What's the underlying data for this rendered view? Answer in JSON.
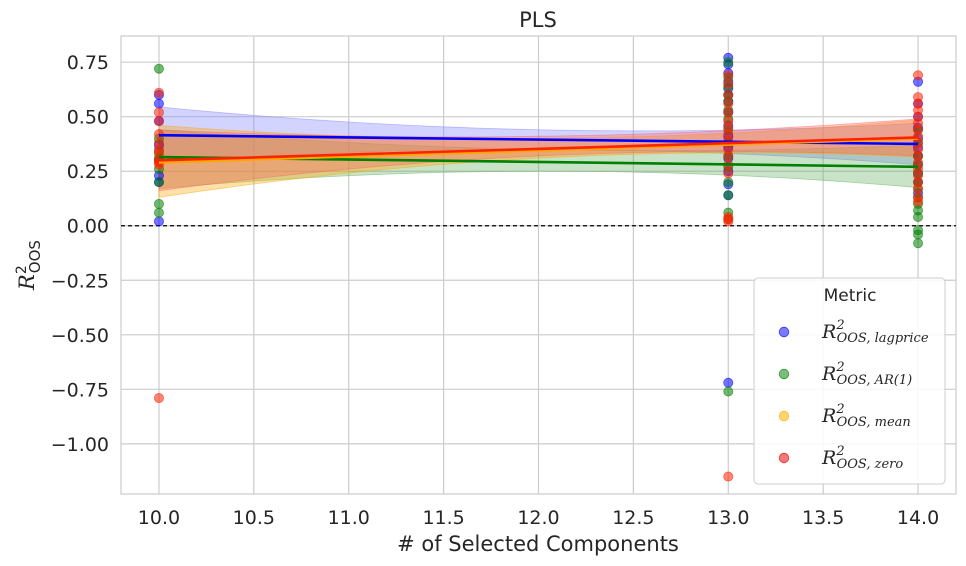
{
  "chart_data": {
    "type": "scatter",
    "title": "PLS",
    "xlabel": "# of Selected Components",
    "ylabel": "R²_OOS",
    "ylabel_main": "R",
    "ylabel_sup": "2",
    "ylabel_sub": "OOS",
    "xlim": [
      9.8,
      14.2
    ],
    "ylim": [
      -1.23,
      0.87
    ],
    "xticks": [
      "10.0",
      "10.5",
      "11.0",
      "11.5",
      "12.0",
      "12.5",
      "13.0",
      "13.5",
      "14.0"
    ],
    "xtick_values": [
      10.0,
      10.5,
      11.0,
      11.5,
      12.0,
      12.5,
      13.0,
      13.5,
      14.0
    ],
    "yticks": [
      "0.75",
      "0.50",
      "0.25",
      "0.00",
      "−0.25",
      "−0.50",
      "−0.75",
      "−1.00"
    ],
    "ytick_values": [
      0.75,
      0.5,
      0.25,
      0.0,
      -0.25,
      -0.5,
      -0.75,
      -1.0
    ],
    "reference_line_y": 0.0,
    "grid": true,
    "legend": {
      "title": "Metric",
      "placement": "bottom-right",
      "entries": [
        {
          "main": "R",
          "sup": "2",
          "sub": "OOS, lagprice",
          "color": "#3333ff"
        },
        {
          "main": "R",
          "sup": "2",
          "sub": "OOS, AR(1)",
          "color": "#339933"
        },
        {
          "main": "R",
          "sup": "2",
          "sub": "OOS, mean",
          "color": "#ffbb22"
        },
        {
          "main": "R",
          "sup": "2",
          "sub": "OOS, zero",
          "color": "#ee3333"
        }
      ]
    },
    "series": [
      {
        "name": "lagprice",
        "color": "#0000ff",
        "band_color": "#8080ff",
        "x": [
          10,
          10,
          10,
          10,
          10,
          10,
          10,
          10,
          13,
          13,
          13,
          13,
          13,
          13,
          13,
          13,
          13,
          13,
          13,
          13,
          13,
          13,
          13,
          13,
          14,
          14,
          14,
          14,
          14,
          14,
          14,
          14,
          14,
          14,
          14
        ],
        "y": [
          0.02,
          0.2,
          0.23,
          0.3,
          0.37,
          0.48,
          0.56,
          0.6,
          0.77,
          0.74,
          0.7,
          0.66,
          0.63,
          0.6,
          0.57,
          0.52,
          0.46,
          0.41,
          0.36,
          0.31,
          0.25,
          0.19,
          0.14,
          -0.72,
          0.66,
          0.56,
          0.5,
          0.45,
          0.4,
          0.36,
          0.32,
          0.28,
          0.24,
          0.2,
          0.15
        ],
        "fit": {
          "x0": 10,
          "y0": 0.415,
          "x1": 14,
          "y1": 0.375
        },
        "band": {
          "x": [
            10,
            12,
            14
          ],
          "upper": [
            0.545,
            0.44,
            0.47
          ],
          "lower": [
            0.29,
            0.35,
            0.28
          ]
        }
      },
      {
        "name": "AR(1)",
        "color": "#008000",
        "band_color": "#60b060",
        "x": [
          10,
          10,
          10,
          10,
          10,
          10,
          10,
          10,
          13,
          13,
          13,
          13,
          13,
          13,
          13,
          13,
          13,
          13,
          13,
          13,
          13,
          13,
          13,
          13,
          14,
          14,
          14,
          14,
          14,
          14,
          14,
          14,
          14,
          14,
          14,
          14,
          14,
          14
        ],
        "y": [
          0.72,
          0.06,
          0.1,
          0.2,
          0.26,
          0.31,
          0.34,
          0.4,
          0.75,
          0.06,
          0.03,
          0.14,
          0.2,
          0.27,
          0.32,
          0.38,
          0.44,
          0.49,
          0.53,
          0.57,
          0.6,
          0.64,
          0.68,
          -0.76,
          -0.08,
          -0.04,
          -0.02,
          0.04,
          0.07,
          0.1,
          0.13,
          0.17,
          0.2,
          0.24,
          0.28,
          0.32,
          0.38,
          0.44
        ],
        "fit": {
          "x0": 10,
          "y0": 0.315,
          "x1": 14,
          "y1": 0.27
        },
        "band": {
          "x": [
            10,
            12,
            14
          ],
          "upper": [
            0.44,
            0.35,
            0.37
          ],
          "lower": [
            0.17,
            0.25,
            0.175
          ]
        }
      },
      {
        "name": "mean",
        "color": "#ffa500",
        "band_color": "#ffa500",
        "x": [],
        "y": [],
        "fit": {
          "x0": 10,
          "y0": 0.29,
          "x1": 14,
          "y1": 0.4
        },
        "band": {
          "x": [
            10,
            12,
            14
          ],
          "upper": [
            0.46,
            0.4,
            0.485
          ],
          "lower": [
            0.13,
            0.31,
            0.315
          ]
        }
      },
      {
        "name": "zero",
        "color": "#ff2200",
        "band_color": "#ff6060",
        "x": [
          10,
          10,
          10,
          10,
          10,
          10,
          10,
          10,
          10,
          10,
          10,
          13,
          13,
          13,
          13,
          13,
          13,
          13,
          13,
          13,
          13,
          13,
          13,
          13,
          13,
          13,
          13,
          13,
          14,
          14,
          14,
          14,
          14,
          14,
          14,
          14,
          14,
          14,
          14,
          14,
          14,
          14,
          14,
          14,
          14,
          14
        ],
        "y": [
          0.61,
          0.52,
          0.48,
          0.42,
          0.38,
          0.35,
          0.33,
          0.3,
          0.29,
          0.28,
          -0.79,
          0.69,
          0.65,
          0.6,
          0.56,
          0.52,
          0.48,
          0.45,
          0.42,
          0.39,
          0.35,
          0.32,
          0.28,
          0.24,
          0.04,
          0.02,
          0.03,
          -1.15,
          0.69,
          0.59,
          0.56,
          0.53,
          0.5,
          0.47,
          0.44,
          0.41,
          0.38,
          0.35,
          0.32,
          0.29,
          0.26,
          0.23,
          0.2,
          0.17,
          0.13,
          0.11
        ],
        "fit": {
          "x0": 10,
          "y0": 0.3,
          "x1": 14,
          "y1": 0.405
        },
        "band": {
          "x": [
            10,
            12,
            14
          ],
          "upper": [
            0.44,
            0.41,
            0.49
          ],
          "lower": [
            0.16,
            0.32,
            0.32
          ]
        }
      }
    ]
  }
}
